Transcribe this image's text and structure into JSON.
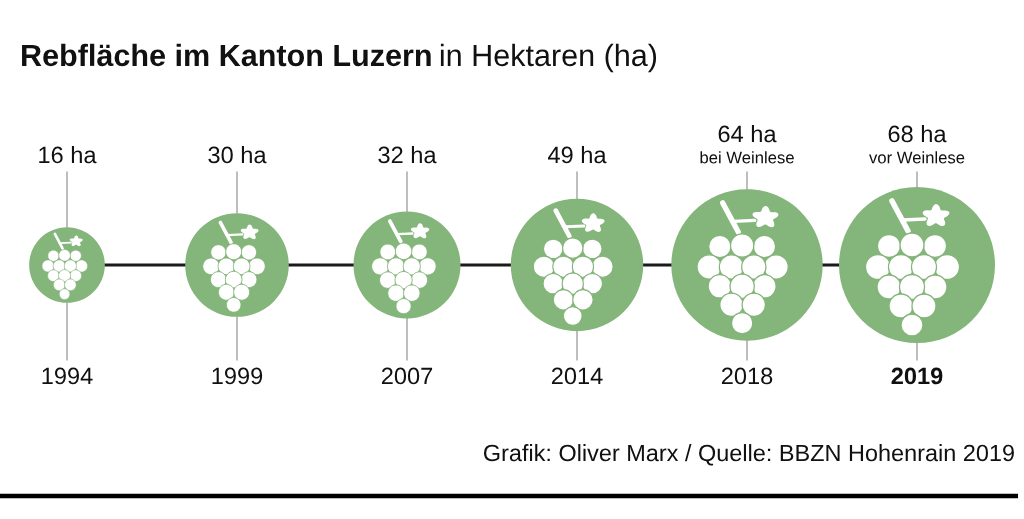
{
  "chart_data": {
    "type": "other",
    "title": "Rebfläche im Kanton Luzern",
    "subtitle": "in Hektaren (ha)",
    "categories": [
      "1994",
      "1999",
      "2007",
      "2014",
      "2018",
      "2019"
    ],
    "values": [
      16,
      30,
      32,
      49,
      64,
      68
    ],
    "value_labels": [
      "16 ha",
      "30 ha",
      "32 ha",
      "49 ha",
      "64 ha\nbei Weinlese",
      "68 ha\nvor Weinlese"
    ],
    "color": "#84b57a",
    "annotations": [
      "Grafik: Oliver Marx / Quelle: BBZN Hohenrain 2019"
    ]
  }
}
